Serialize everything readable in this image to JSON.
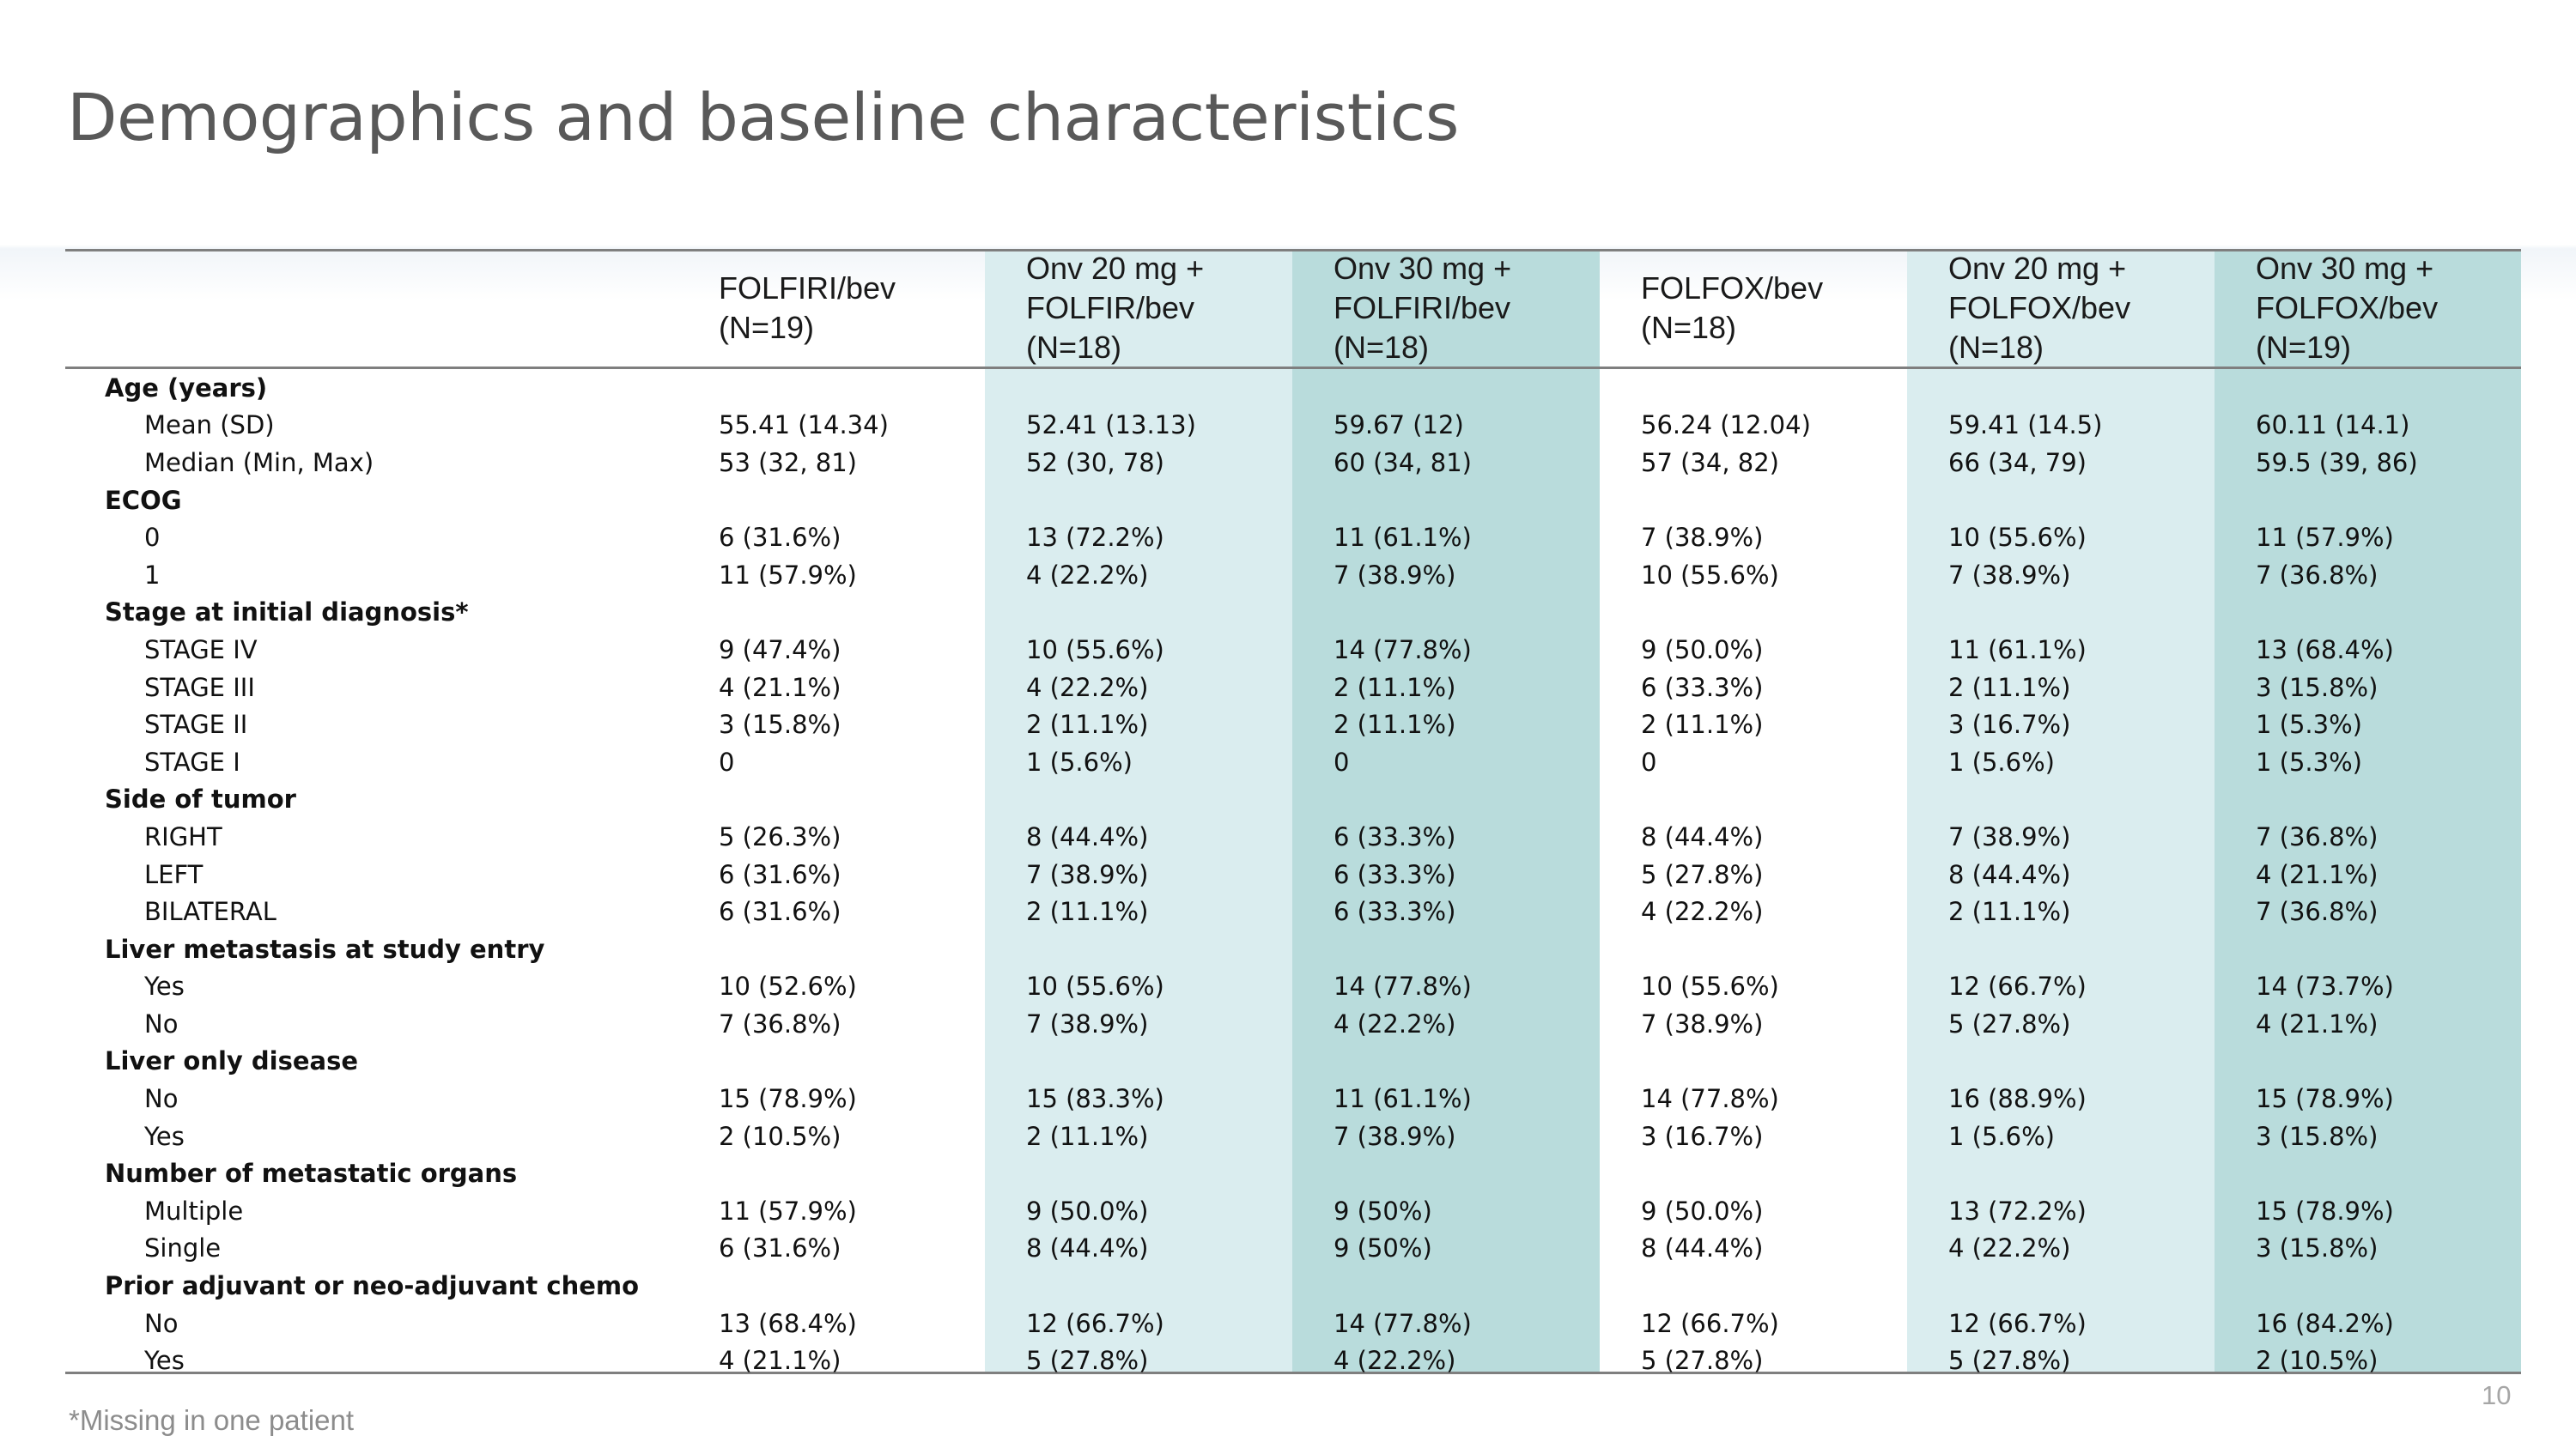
{
  "title": "Demographics and baseline characteristics",
  "columns": [
    {
      "line1": "FOLFIRI/bev",
      "line2": "(N=19)",
      "line3": ""
    },
    {
      "line1": "Onv 20 mg +",
      "line2": "FOLFIR/bev",
      "line3": "(N=18)"
    },
    {
      "line1": "Onv 30 mg +",
      "line2": "FOLFIRI/bev",
      "line3": "(N=18)"
    },
    {
      "line1": "FOLFOX/bev",
      "line2": "(N=18)",
      "line3": ""
    },
    {
      "line1": "Onv 20 mg +",
      "line2": "FOLFOX/bev",
      "line3": "(N=18)"
    },
    {
      "line1": "Onv 30 mg +",
      "line2": "FOLFOX/bev",
      "line3": "(N=19)"
    }
  ],
  "column_colors": {
    "light": "#daedef",
    "dark": "#b9dcdc"
  },
  "rows": [
    {
      "type": "group",
      "label": "Age (years)"
    },
    {
      "type": "item",
      "label": "Mean (SD)",
      "values": [
        "55.41 (14.34)",
        "52.41 (13.13)",
        "59.67 (12)",
        "56.24 (12.04)",
        "59.41 (14.5)",
        "60.11 (14.1)"
      ]
    },
    {
      "type": "item",
      "label": "Median (Min, Max)",
      "values": [
        "53 (32, 81)",
        "52 (30, 78)",
        "60 (34, 81)",
        "57 (34, 82)",
        "66 (34, 79)",
        "59.5 (39, 86)"
      ]
    },
    {
      "type": "group",
      "label": "ECOG"
    },
    {
      "type": "item",
      "label": "0",
      "values": [
        "6 (31.6%)",
        "13 (72.2%)",
        "11 (61.1%)",
        "7 (38.9%)",
        "10 (55.6%)",
        "11 (57.9%)"
      ]
    },
    {
      "type": "item",
      "label": "1",
      "values": [
        "11 (57.9%)",
        "4 (22.2%)",
        "7 (38.9%)",
        "10 (55.6%)",
        "7 (38.9%)",
        "7 (36.8%)"
      ]
    },
    {
      "type": "group",
      "label": "Stage at initial diagnosis*"
    },
    {
      "type": "item",
      "label": "STAGE IV",
      "values": [
        "9 (47.4%)",
        "10 (55.6%)",
        "14 (77.8%)",
        "9 (50.0%)",
        "11 (61.1%)",
        "13 (68.4%)"
      ]
    },
    {
      "type": "item",
      "label": "STAGE III",
      "values": [
        "4 (21.1%)",
        "4 (22.2%)",
        "2 (11.1%)",
        "6 (33.3%)",
        "2 (11.1%)",
        "3 (15.8%)"
      ]
    },
    {
      "type": "item",
      "label": "STAGE II",
      "values": [
        "3 (15.8%)",
        "2 (11.1%)",
        "2 (11.1%)",
        "2 (11.1%)",
        "3 (16.7%)",
        "1 (5.3%)"
      ]
    },
    {
      "type": "item",
      "label": "STAGE I",
      "values": [
        "0",
        "1 (5.6%)",
        "0",
        "0",
        "1 (5.6%)",
        "1 (5.3%)"
      ]
    },
    {
      "type": "group",
      "label": "Side of tumor"
    },
    {
      "type": "item",
      "label": "RIGHT",
      "values": [
        "5 (26.3%)",
        "8 (44.4%)",
        "6 (33.3%)",
        "8 (44.4%)",
        "7 (38.9%)",
        "7 (36.8%)"
      ]
    },
    {
      "type": "item",
      "label": "LEFT",
      "values": [
        "6 (31.6%)",
        "7 (38.9%)",
        "6 (33.3%)",
        "5 (27.8%)",
        "8 (44.4%)",
        "4 (21.1%)"
      ]
    },
    {
      "type": "item",
      "label": "BILATERAL",
      "values": [
        "6 (31.6%)",
        "2 (11.1%)",
        "6 (33.3%)",
        "4 (22.2%)",
        "2 (11.1%)",
        "7 (36.8%)"
      ]
    },
    {
      "type": "group",
      "label": "Liver metastasis at study entry"
    },
    {
      "type": "item",
      "label": "Yes",
      "values": [
        "10 (52.6%)",
        "10 (55.6%)",
        "14 (77.8%)",
        "10 (55.6%)",
        "12 (66.7%)",
        "14 (73.7%)"
      ]
    },
    {
      "type": "item",
      "label": "No",
      "values": [
        "7 (36.8%)",
        "7 (38.9%)",
        "4 (22.2%)",
        "7 (38.9%)",
        "5 (27.8%)",
        "4 (21.1%)"
      ]
    },
    {
      "type": "group",
      "label": "Liver only disease"
    },
    {
      "type": "item",
      "label": "No",
      "values": [
        "15 (78.9%)",
        "15 (83.3%)",
        "11 (61.1%)",
        "14 (77.8%)",
        "16 (88.9%)",
        "15 (78.9%)"
      ]
    },
    {
      "type": "item",
      "label": "Yes",
      "values": [
        "2 (10.5%)",
        "2 (11.1%)",
        "7 (38.9%)",
        "3 (16.7%)",
        "1 (5.6%)",
        "3 (15.8%)"
      ]
    },
    {
      "type": "group",
      "label": "Number of metastatic organs"
    },
    {
      "type": "item",
      "label": "Multiple",
      "values": [
        "11 (57.9%)",
        "9 (50.0%)",
        "9 (50%)",
        "9 (50.0%)",
        "13 (72.2%)",
        "15 (78.9%)"
      ]
    },
    {
      "type": "item",
      "label": "Single",
      "values": [
        "6 (31.6%)",
        "8 (44.4%)",
        "9 (50%)",
        "8 (44.4%)",
        "4 (22.2%)",
        "3 (15.8%)"
      ]
    },
    {
      "type": "group",
      "label": "Prior adjuvant or neo-adjuvant chemo"
    },
    {
      "type": "item",
      "label": "No",
      "values": [
        "13 (68.4%)",
        "12 (66.7%)",
        "14 (77.8%)",
        "12 (66.7%)",
        "12 (66.7%)",
        "16 (84.2%)"
      ]
    },
    {
      "type": "item",
      "label": "Yes",
      "values": [
        "4 (21.1%)",
        "5 (27.8%)",
        "4 (22.2%)",
        "5 (27.8%)",
        "5 (27.8%)",
        "2 (10.5%)"
      ]
    }
  ],
  "footnote": "*Missing in one patient",
  "page_number": "10"
}
